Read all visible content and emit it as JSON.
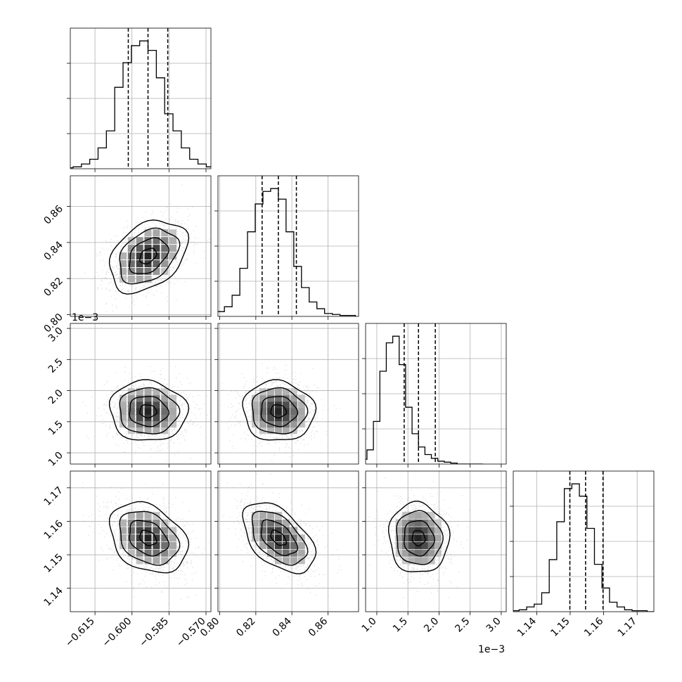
{
  "chart_data": {
    "type": "corner",
    "grid": true,
    "quantile_line_style": "dashed",
    "contour_levels": 4,
    "parameters": [
      {
        "range": [
          -0.625,
          -0.568
        ],
        "ticks": [
          -0.615,
          -0.6,
          -0.585,
          -0.57
        ],
        "tick_labels": [
          "−0.615",
          "−0.600",
          "−0.585",
          "−0.570"
        ],
        "offset": "",
        "mean": -0.5935,
        "std": 0.0075,
        "quantiles": [
          -0.6015,
          -0.5935,
          -0.5855
        ],
        "hist_counts": [
          1,
          2,
          5,
          10,
          22,
          40,
          86,
          112,
          130,
          135,
          125,
          96,
          58,
          40,
          22,
          10,
          5,
          2,
          1,
          1
        ]
      },
      {
        "range": [
          0.799,
          0.877
        ],
        "ticks": [
          0.8,
          0.82,
          0.84,
          0.86
        ],
        "tick_labels": [
          "0.80",
          "0.82",
          "0.84",
          "0.86"
        ],
        "offset": "",
        "mean": 0.8325,
        "std": 0.0095,
        "quantiles": [
          0.8235,
          0.8325,
          0.8425
        ],
        "hist_counts": [
          1,
          2,
          5,
          10,
          22,
          50,
          88,
          117,
          130,
          133,
          122,
          88,
          52,
          30,
          15,
          8,
          3,
          2,
          1,
          1
        ]
      },
      {
        "range": [
          0.82,
          3.08
        ],
        "ticks": [
          1.0,
          1.5,
          2.0,
          2.5,
          3.0
        ],
        "tick_labels": [
          "1.0",
          "1.5",
          "2.0",
          "2.5",
          "3.0"
        ],
        "offset": "1e−3",
        "mean": 1.67,
        "std": 0.23,
        "quantiles": [
          1.44,
          1.67,
          1.94
        ],
        "hist_counts": [
          2,
          5,
          15,
          45,
          98,
          128,
          135,
          105,
          60,
          32,
          18,
          10,
          6,
          3,
          2,
          1,
          0,
          0,
          0,
          0
        ]
      },
      {
        "range": [
          1.133,
          1.175
        ],
        "ticks": [
          1.14,
          1.15,
          1.16,
          1.17
        ],
        "tick_labels": [
          "1.14",
          "1.15",
          "1.16",
          "1.17"
        ],
        "offset": "",
        "mean": 1.155,
        "std": 0.005,
        "quantiles": [
          1.1499,
          1.1546,
          1.1598
        ],
        "hist_counts": [
          1,
          2,
          5,
          8,
          20,
          55,
          95,
          130,
          135,
          122,
          88,
          50,
          25,
          10,
          5,
          2,
          1,
          1,
          0,
          0
        ]
      }
    ],
    "correlations": {
      "1-0": 0.35,
      "2-0": -0.05,
      "2-1": -0.05,
      "3-0": -0.3,
      "3-1": -0.5,
      "3-2": -0.05
    }
  }
}
